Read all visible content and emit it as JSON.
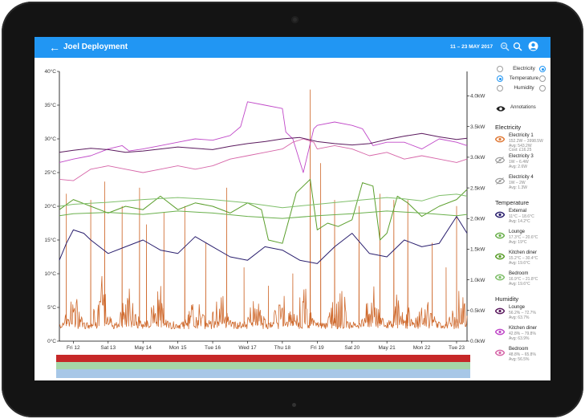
{
  "header": {
    "title": "Joel Deployment",
    "date_range": "11 – 23 MAY 2017"
  },
  "toggles": [
    {
      "label": "Electricity",
      "left_on": false,
      "right_on": true
    },
    {
      "label": "Temperature",
      "left_on": true,
      "right_on": false
    },
    {
      "label": "Humidity",
      "left_on": false,
      "right_on": false
    }
  ],
  "annotations_label": "Annotations",
  "sections": {
    "electricity": {
      "title": "Electricity",
      "items": [
        {
          "name": "Electricity 1",
          "lines": [
            "152.2W – 3998.5W",
            "Avg: 543.2W",
            "Cost: £16.25"
          ],
          "color": "#e07b39",
          "visible": true
        },
        {
          "name": "Electricity 3",
          "lines": [
            "1W – 6.4W",
            "Avg: 2.6W"
          ],
          "color": "#9e9e9e",
          "visible": false
        },
        {
          "name": "Electricity 4",
          "lines": [
            "1W – 2W",
            "Avg: 1.3W"
          ],
          "color": "#9e9e9e",
          "visible": false
        }
      ]
    },
    "temperature": {
      "title": "Temperature",
      "items": [
        {
          "name": "External",
          "lines": [
            "11°C – 18.6°C",
            "Avg: 14.2°C"
          ],
          "color": "#2a1f6e",
          "visible": true
        },
        {
          "name": "Lounge",
          "lines": [
            "17.3°C – 20.6°C",
            "Avg: 19°C"
          ],
          "color": "#6ab04c",
          "visible": true
        },
        {
          "name": "Kitchen diner",
          "lines": [
            "15.2°C – 30.4°C",
            "Avg: 19.6°C"
          ],
          "color": "#5a9e2b",
          "visible": true
        },
        {
          "name": "Bedroom",
          "lines": [
            "16.9°C – 21.8°C",
            "Avg: 19.6°C"
          ],
          "color": "#7fbf6a",
          "visible": true
        }
      ]
    },
    "humidity": {
      "title": "Humidity",
      "items": [
        {
          "name": "Lounge",
          "lines": [
            "56.2% – 72.7%",
            "Avg: 63.7%"
          ],
          "color": "#5b1a5e",
          "visible": true
        },
        {
          "name": "Kitchen diner",
          "lines": [
            "42.8% – 79.8%",
            "Avg: 63.9%"
          ],
          "color": "#c048c8",
          "visible": true
        },
        {
          "name": "Bedroom",
          "lines": [
            "48.8% – 65.8%",
            "Avg: 56.5%"
          ],
          "color": "#d665a8",
          "visible": true
        }
      ]
    }
  },
  "chart_data": {
    "type": "line",
    "x_labels": [
      "Fri 12",
      "Sat 13",
      "May 14",
      "Mon 15",
      "Tue 16",
      "Wed 17",
      "Thu 18",
      "Fri 19",
      "Sat 20",
      "May 21",
      "Mon 22",
      "Tue 23"
    ],
    "y_left_labels": [
      "0°C",
      "5°C",
      "10°C",
      "15°C",
      "20°C",
      "25°C",
      "30°C",
      "35°C",
      "40°C"
    ],
    "y_left_range": [
      0,
      40
    ],
    "y_right_labels": [
      "0.0kW",
      "0.5kW",
      "1.0kW",
      "1.5kW",
      "2.0kW",
      "2.5kW",
      "3.0kW",
      "3.5kW",
      "4.0kW"
    ],
    "y_right_range": [
      0,
      4.4
    ],
    "x_range": [
      11.6,
      23.3
    ],
    "series": [
      {
        "key": "hum_kitchen",
        "axis": "left",
        "color": "#c048c8",
        "width": 0.9,
        "x": [
          11.6,
          12.0,
          12.5,
          13.0,
          13.4,
          13.6,
          14.0,
          14.5,
          15.0,
          15.5,
          16.0,
          16.5,
          16.8,
          17.0,
          17.5,
          18.0,
          18.1,
          18.3,
          18.6,
          18.9,
          19.0,
          19.5,
          20.0,
          20.3,
          20.6,
          21.0,
          21.5,
          22.0,
          22.5,
          23.0,
          23.3
        ],
        "y": [
          26.5,
          27.0,
          27.5,
          28.5,
          29.0,
          28.2,
          28.5,
          29.0,
          29.5,
          30.0,
          29.8,
          30.5,
          31.8,
          35.5,
          35.0,
          34.5,
          31.0,
          30.0,
          25.0,
          31.5,
          32.0,
          32.5,
          32.0,
          31.5,
          29.0,
          29.5,
          29.5,
          28.5,
          30.0,
          29.5,
          29.0
        ]
      },
      {
        "key": "hum_bedroom",
        "axis": "left",
        "color": "#d665a8",
        "width": 0.9,
        "x": [
          11.6,
          12.0,
          12.5,
          13.0,
          13.5,
          14.0,
          14.5,
          15.0,
          15.5,
          16.0,
          16.5,
          17.0,
          17.5,
          18.0,
          18.3,
          18.6,
          18.9,
          19.0,
          19.5,
          20.0,
          20.5,
          21.0,
          21.5,
          22.0,
          22.5,
          23.0,
          23.3
        ],
        "y": [
          24.0,
          23.8,
          25.5,
          26.0,
          25.5,
          25.0,
          25.5,
          26.0,
          25.5,
          26.0,
          27.0,
          27.5,
          28.0,
          28.5,
          29.5,
          30.0,
          29.5,
          28.5,
          29.0,
          28.5,
          27.5,
          28.0,
          27.0,
          27.5,
          27.0,
          26.5,
          27.0
        ]
      },
      {
        "key": "hum_lounge",
        "axis": "left",
        "color": "#5b1a5e",
        "width": 1.0,
        "x": [
          11.6,
          12.0,
          12.5,
          13.0,
          13.5,
          14.0,
          14.5,
          15.0,
          15.5,
          16.0,
          16.5,
          17.0,
          17.5,
          18.0,
          18.5,
          19.0,
          19.5,
          20.0,
          20.5,
          21.0,
          21.5,
          22.0,
          22.5,
          23.0,
          23.3
        ],
        "y": [
          28.0,
          28.3,
          28.6,
          28.4,
          28.0,
          28.2,
          28.5,
          28.8,
          28.6,
          28.4,
          28.9,
          29.3,
          29.6,
          30.0,
          30.2,
          29.6,
          29.3,
          29.1,
          29.3,
          29.9,
          30.4,
          30.8,
          30.3,
          29.9,
          30.1
        ]
      },
      {
        "key": "temp_kitchen",
        "axis": "left",
        "color": "#5a9e2b",
        "width": 1.0,
        "x": [
          11.6,
          12.0,
          12.5,
          13.0,
          13.5,
          14.0,
          14.5,
          15.0,
          15.5,
          16.0,
          16.5,
          17.0,
          17.4,
          17.6,
          18.0,
          18.4,
          18.8,
          19.0,
          19.3,
          19.6,
          20.0,
          20.3,
          20.6,
          20.8,
          21.0,
          21.3,
          21.6,
          22.0,
          22.5,
          23.0,
          23.3
        ],
        "y": [
          19.5,
          21.0,
          20.0,
          19.0,
          20.0,
          19.5,
          21.5,
          19.5,
          20.5,
          20.0,
          19.0,
          20.5,
          19.5,
          15.0,
          14.5,
          22.0,
          24.0,
          16.5,
          17.5,
          17.0,
          18.0,
          23.5,
          23.0,
          15.0,
          16.0,
          21.5,
          20.5,
          18.5,
          20.0,
          21.0,
          22.5
        ]
      },
      {
        "key": "temp_bedroom",
        "axis": "left",
        "color": "#7fbf6a",
        "width": 1.0,
        "x": [
          11.6,
          12.0,
          13.0,
          14.0,
          15.0,
          16.0,
          17.0,
          18.0,
          19.0,
          20.0,
          21.0,
          21.5,
          22.0,
          22.5,
          23.0,
          23.3
        ],
        "y": [
          20.0,
          20.3,
          20.6,
          21.0,
          21.3,
          21.0,
          20.5,
          19.8,
          20.3,
          20.8,
          21.3,
          21.1,
          20.8,
          21.6,
          21.8,
          21.5
        ]
      },
      {
        "key": "temp_lounge",
        "axis": "left",
        "color": "#6ab04c",
        "width": 1.0,
        "x": [
          11.6,
          12.0,
          13.0,
          14.0,
          15.0,
          16.0,
          17.0,
          18.0,
          19.0,
          20.0,
          21.0,
          22.0,
          23.0,
          23.3
        ],
        "y": [
          18.6,
          18.9,
          19.1,
          18.8,
          19.3,
          19.0,
          18.5,
          18.2,
          18.6,
          18.9,
          19.3,
          19.0,
          18.6,
          18.8
        ]
      },
      {
        "key": "temp_external",
        "axis": "left",
        "color": "#2a1f6e",
        "width": 1.0,
        "x": [
          11.6,
          11.8,
          12.0,
          12.3,
          12.5,
          13.0,
          13.5,
          14.0,
          14.5,
          15.0,
          15.5,
          16.0,
          16.5,
          17.0,
          17.5,
          18.0,
          18.5,
          19.0,
          19.5,
          20.0,
          20.5,
          21.0,
          21.5,
          22.0,
          22.5,
          23.0,
          23.3
        ],
        "y": [
          12.0,
          14.5,
          16.5,
          16.0,
          15.0,
          13.0,
          14.0,
          15.0,
          13.5,
          13.0,
          15.5,
          14.0,
          12.5,
          12.0,
          14.0,
          13.5,
          12.0,
          11.5,
          14.0,
          16.0,
          13.0,
          12.5,
          15.0,
          14.0,
          14.5,
          18.5,
          16.0
        ]
      },
      {
        "key": "electricity_1",
        "axis": "right",
        "color": "#cf6a2e",
        "width": 0.8,
        "type": "spiky",
        "spikes_x": [
          11.8,
          12.5,
          12.9,
          13.4,
          13.9,
          14.1,
          14.6,
          15.2,
          15.8,
          16.4,
          16.9,
          17.6,
          18.3,
          18.8,
          19.1,
          19.5,
          20.2,
          20.8,
          21.2,
          21.6,
          22.3,
          22.7,
          23.0
        ],
        "spikes_y": [
          2.4,
          2.3,
          2.6,
          2.2,
          2.5,
          1.9,
          2.1,
          2.2,
          1.6,
          2.5,
          1.2,
          0.9,
          1.1,
          4.1,
          2.9,
          2.3,
          2.2,
          2.4,
          2.3,
          2.3,
          1.6,
          1.2,
          2.2
        ],
        "baseline_kw": 0.2,
        "bursts_x": [
          12.0,
          12.8,
          13.6,
          14.4,
          15.5,
          16.2,
          17.2,
          18.0,
          18.6,
          19.6,
          20.6,
          21.4,
          22.1,
          23.1
        ],
        "bursts_kw": [
          0.6,
          0.8,
          0.7,
          0.9,
          0.5,
          0.6,
          0.5,
          0.6,
          0.7,
          0.9,
          0.7,
          0.8,
          0.5,
          0.7
        ]
      }
    ],
    "timeline_bands": [
      "#c62828",
      "#a5d6a7",
      "#a7c7e7"
    ]
  }
}
